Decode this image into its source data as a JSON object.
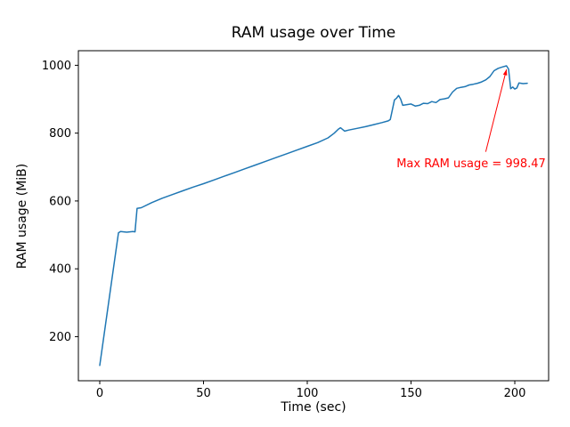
{
  "figure": {
    "background": "#ffffff",
    "spine_color": "#000000"
  },
  "chart_data": {
    "type": "line",
    "title": "RAM usage over Time",
    "xlabel": "Time (sec)",
    "ylabel": "RAM usage (MiB)",
    "grid": false,
    "legend": null,
    "xlim": [
      -10.3,
      216.3
    ],
    "ylim": [
      70,
      1043
    ],
    "x_ticks": [
      0,
      50,
      100,
      150,
      200
    ],
    "y_ticks": [
      200,
      400,
      600,
      800,
      1000
    ],
    "series": [
      {
        "name": "ram-usage",
        "color": "#1f77b4",
        "points": [
          [
            0,
            115
          ],
          [
            9,
            506
          ],
          [
            10,
            510
          ],
          [
            13,
            508
          ],
          [
            16,
            510
          ],
          [
            17,
            509
          ],
          [
            18,
            578
          ],
          [
            20,
            580
          ],
          [
            25,
            595
          ],
          [
            30,
            608
          ],
          [
            35,
            619
          ],
          [
            40,
            630
          ],
          [
            45,
            641
          ],
          [
            50,
            651
          ],
          [
            55,
            662
          ],
          [
            60,
            673
          ],
          [
            65,
            684
          ],
          [
            70,
            695
          ],
          [
            75,
            706
          ],
          [
            80,
            717
          ],
          [
            85,
            728
          ],
          [
            90,
            739
          ],
          [
            95,
            750
          ],
          [
            100,
            761
          ],
          [
            105,
            772
          ],
          [
            110,
            786
          ],
          [
            113,
            800
          ],
          [
            115,
            812
          ],
          [
            116,
            816
          ],
          [
            118,
            806
          ],
          [
            120,
            809
          ],
          [
            124,
            814
          ],
          [
            128,
            819
          ],
          [
            132,
            825
          ],
          [
            136,
            831
          ],
          [
            139,
            836
          ],
          [
            140,
            840
          ],
          [
            141,
            868
          ],
          [
            142,
            898
          ],
          [
            143,
            903
          ],
          [
            144,
            911
          ],
          [
            145,
            900
          ],
          [
            146,
            882
          ],
          [
            148,
            884
          ],
          [
            150,
            886
          ],
          [
            152,
            880
          ],
          [
            154,
            882
          ],
          [
            156,
            888
          ],
          [
            158,
            887
          ],
          [
            160,
            893
          ],
          [
            162,
            890
          ],
          [
            164,
            899
          ],
          [
            166,
            901
          ],
          [
            168,
            904
          ],
          [
            170,
            921
          ],
          [
            172,
            932
          ],
          [
            174,
            935
          ],
          [
            176,
            937
          ],
          [
            178,
            942
          ],
          [
            180,
            944
          ],
          [
            182,
            947
          ],
          [
            184,
            951
          ],
          [
            186,
            957
          ],
          [
            188,
            967
          ],
          [
            190,
            984
          ],
          [
            192,
            991
          ],
          [
            194,
            995
          ],
          [
            196,
            998.47
          ],
          [
            197,
            989
          ],
          [
            198,
            931
          ],
          [
            199,
            936
          ],
          [
            200,
            930
          ],
          [
            201,
            933
          ],
          [
            202,
            948
          ],
          [
            204,
            946
          ],
          [
            206,
            947
          ]
        ]
      }
    ],
    "annotation": {
      "label": "Max RAM usage = 998.47",
      "color": "#ff0000",
      "xy": [
        196,
        998.47
      ],
      "text_pos": [
        143,
        700
      ],
      "arrow_from": [
        186,
        745
      ]
    }
  }
}
